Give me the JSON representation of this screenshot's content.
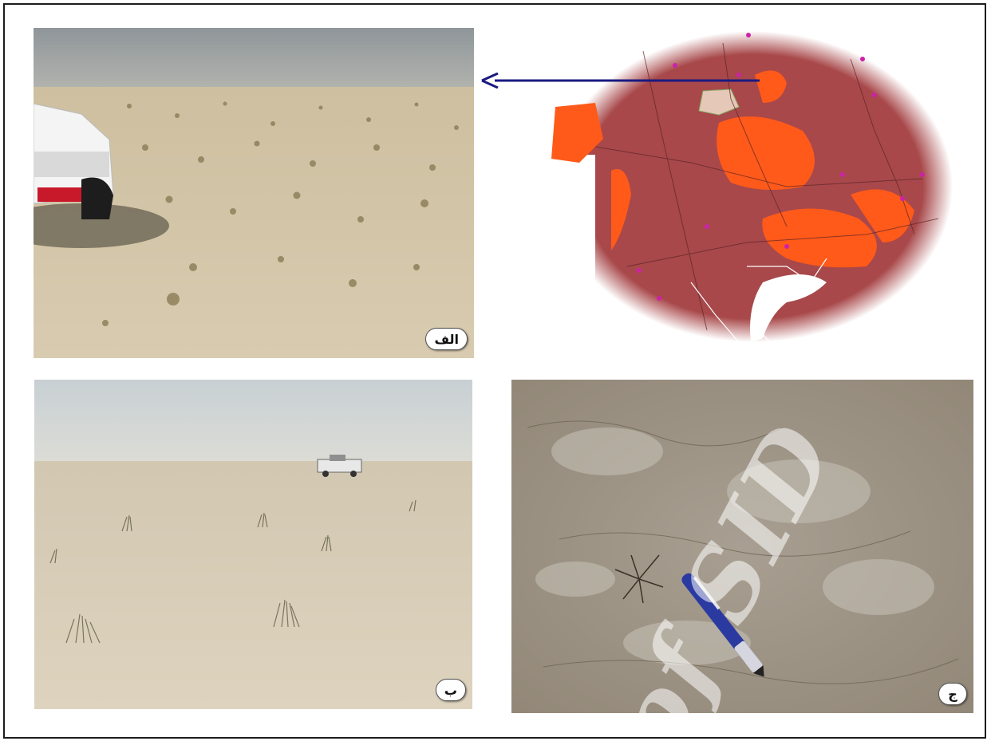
{
  "panels": {
    "a": {
      "label": "الف"
    },
    "b": {
      "label": "ب"
    },
    "c": {
      "label": "ج"
    }
  },
  "map": {
    "arrow_color": "#1a1a80",
    "hotspot_color": "#ff5a1a",
    "base_color": "#a8484a"
  },
  "watermark": {
    "text": "of SID"
  },
  "colors": {
    "frame": "#1c1c1c",
    "sky": "#9aa0a4",
    "ground": "#d8cbb0"
  }
}
